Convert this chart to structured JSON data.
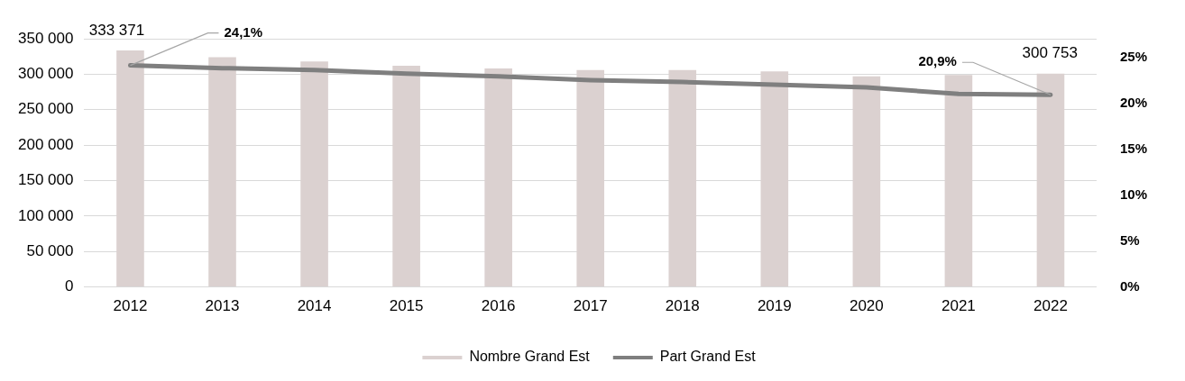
{
  "chart_data": {
    "type": "bar",
    "categories": [
      "2012",
      "2013",
      "2014",
      "2015",
      "2016",
      "2017",
      "2018",
      "2019",
      "2020",
      "2021",
      "2022"
    ],
    "series": [
      {
        "name": "Nombre Grand Est",
        "color": "#dbd1d0",
        "values": [
          333371,
          324000,
          318000,
          312000,
          308000,
          306000,
          306000,
          304000,
          297000,
          299000,
          300753
        ],
        "value_labels": [
          "333 371",
          null,
          null,
          null,
          null,
          null,
          null,
          null,
          null,
          null,
          "300 753"
        ]
      },
      {
        "name": "Part Grand Est",
        "type": "line",
        "axis": "y2",
        "color": "#7f7f7f",
        "values": [
          24.1,
          23.8,
          23.6,
          23.2,
          22.9,
          22.5,
          22.3,
          22.0,
          21.7,
          21.0,
          20.9
        ],
        "value_labels": [
          "24,1%",
          null,
          null,
          null,
          null,
          null,
          null,
          null,
          null,
          null,
          "20,9%"
        ]
      }
    ],
    "ylim": [
      0,
      350000
    ],
    "yticks": [
      {
        "value": 0,
        "label": "0"
      },
      {
        "value": 50000,
        "label": "50 000"
      },
      {
        "value": 100000,
        "label": "100 000"
      },
      {
        "value": 150000,
        "label": "150 000"
      },
      {
        "value": 200000,
        "label": "200 000"
      },
      {
        "value": 250000,
        "label": "250 000"
      },
      {
        "value": 300000,
        "label": "300 000"
      },
      {
        "value": 350000,
        "label": "350 000"
      }
    ],
    "y2lim": [
      0,
      27
    ],
    "y2ticks": [
      {
        "value": 0,
        "label": "0%"
      },
      {
        "value": 5,
        "label": "5%"
      },
      {
        "value": 10,
        "label": "10%"
      },
      {
        "value": 15,
        "label": "15%"
      },
      {
        "value": 20,
        "label": "20%"
      },
      {
        "value": 25,
        "label": "25%"
      }
    ],
    "grid": "y",
    "legend": "bottom",
    "marker": "none",
    "line_style": "solid"
  }
}
